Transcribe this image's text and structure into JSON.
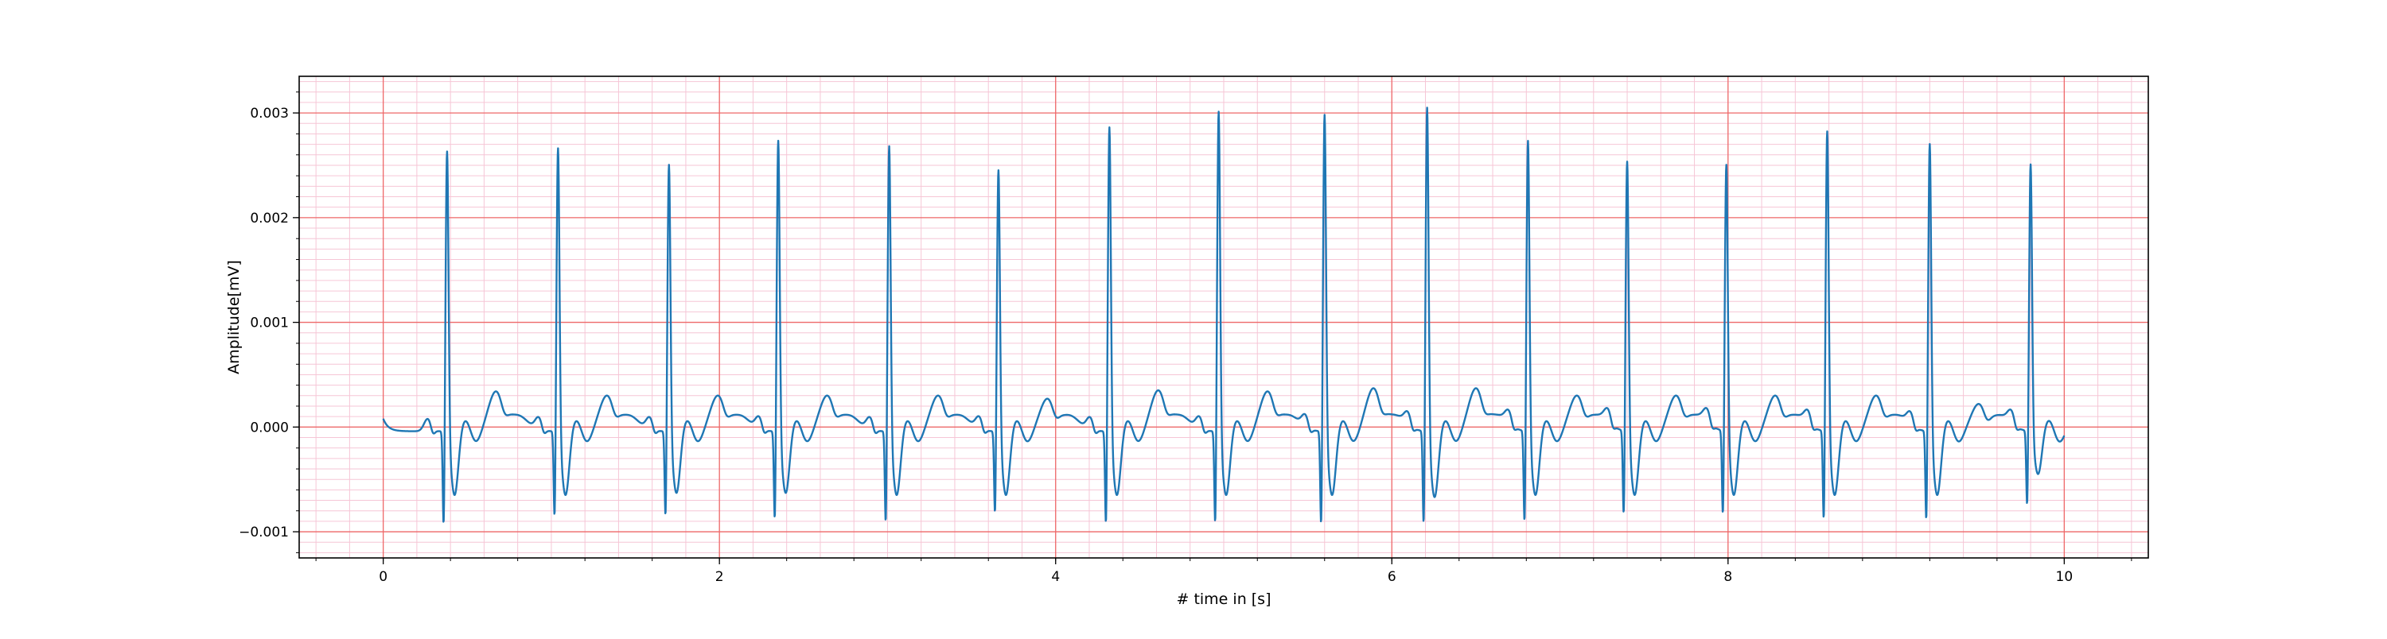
{
  "chart_data": {
    "type": "line",
    "title": "",
    "xlabel": "# time in [s]",
    "ylabel": "Amplitude[mV]",
    "xlim": [
      -0.5,
      10.5
    ],
    "ylim": [
      -0.00125,
      0.00335
    ],
    "xticks": [
      0,
      2,
      4,
      6,
      8,
      10
    ],
    "xtick_labels": [
      "0",
      "2",
      "4",
      "6",
      "8",
      "10"
    ],
    "yticks": [
      -0.001,
      0.0,
      0.001,
      0.002,
      0.003
    ],
    "ytick_labels": [
      "−0.001",
      "0.000",
      "0.001",
      "0.002",
      "0.003"
    ],
    "grid": "major-red-and-minor-pink",
    "series": [
      {
        "color": "#1f77b4",
        "sample_step_s": 0.01,
        "start_s": 0.0,
        "end_s": 10.0,
        "beats": [
          {
            "t": 0.38,
            "r": 0.00275,
            "q": -0.00102,
            "s": -0.0006,
            "t_wave": 0.00037
          },
          {
            "t": 1.04,
            "r": 0.00278,
            "q": -0.00094,
            "s": -0.0006,
            "t_wave": 0.00033
          },
          {
            "t": 1.7,
            "r": 0.00262,
            "q": -0.00093,
            "s": -0.00058,
            "t_wave": 0.00033
          },
          {
            "t": 2.35,
            "r": 0.00285,
            "q": -0.00097,
            "s": -0.00058,
            "t_wave": 0.00033
          },
          {
            "t": 3.01,
            "r": 0.0028,
            "q": -0.001,
            "s": -0.0006,
            "t_wave": 0.00033
          },
          {
            "t": 3.66,
            "r": 0.00257,
            "q": -0.0009,
            "s": -0.0006,
            "t_wave": 0.0003
          },
          {
            "t": 4.32,
            "r": 0.00298,
            "q": -0.00102,
            "s": -0.0006,
            "t_wave": 0.00038
          },
          {
            "t": 4.97,
            "r": 0.00313,
            "q": -0.00102,
            "s": -0.0006,
            "t_wave": 0.00037
          },
          {
            "t": 5.6,
            "r": 0.0031,
            "q": -0.00103,
            "s": -0.0006,
            "t_wave": 0.0004
          },
          {
            "t": 6.21,
            "r": 0.00317,
            "q": -0.00103,
            "s": -0.00062,
            "t_wave": 0.0004
          },
          {
            "t": 6.81,
            "r": 0.00285,
            "q": -0.001,
            "s": -0.0006,
            "t_wave": 0.00033
          },
          {
            "t": 7.4,
            "r": 0.00265,
            "q": -0.00092,
            "s": -0.0006,
            "t_wave": 0.00033
          },
          {
            "t": 7.99,
            "r": 0.00262,
            "q": -0.00092,
            "s": -0.0006,
            "t_wave": 0.00033
          },
          {
            "t": 8.59,
            "r": 0.00294,
            "q": -0.00098,
            "s": -0.0006,
            "t_wave": 0.00033
          },
          {
            "t": 9.2,
            "r": 0.00282,
            "q": -0.00098,
            "s": -0.0006,
            "t_wave": 0.00025
          },
          {
            "t": 9.8,
            "r": 0.0026,
            "q": -0.00083,
            "s": -0.0004,
            "t_wave": 0.00022
          }
        ]
      }
    ]
  }
}
